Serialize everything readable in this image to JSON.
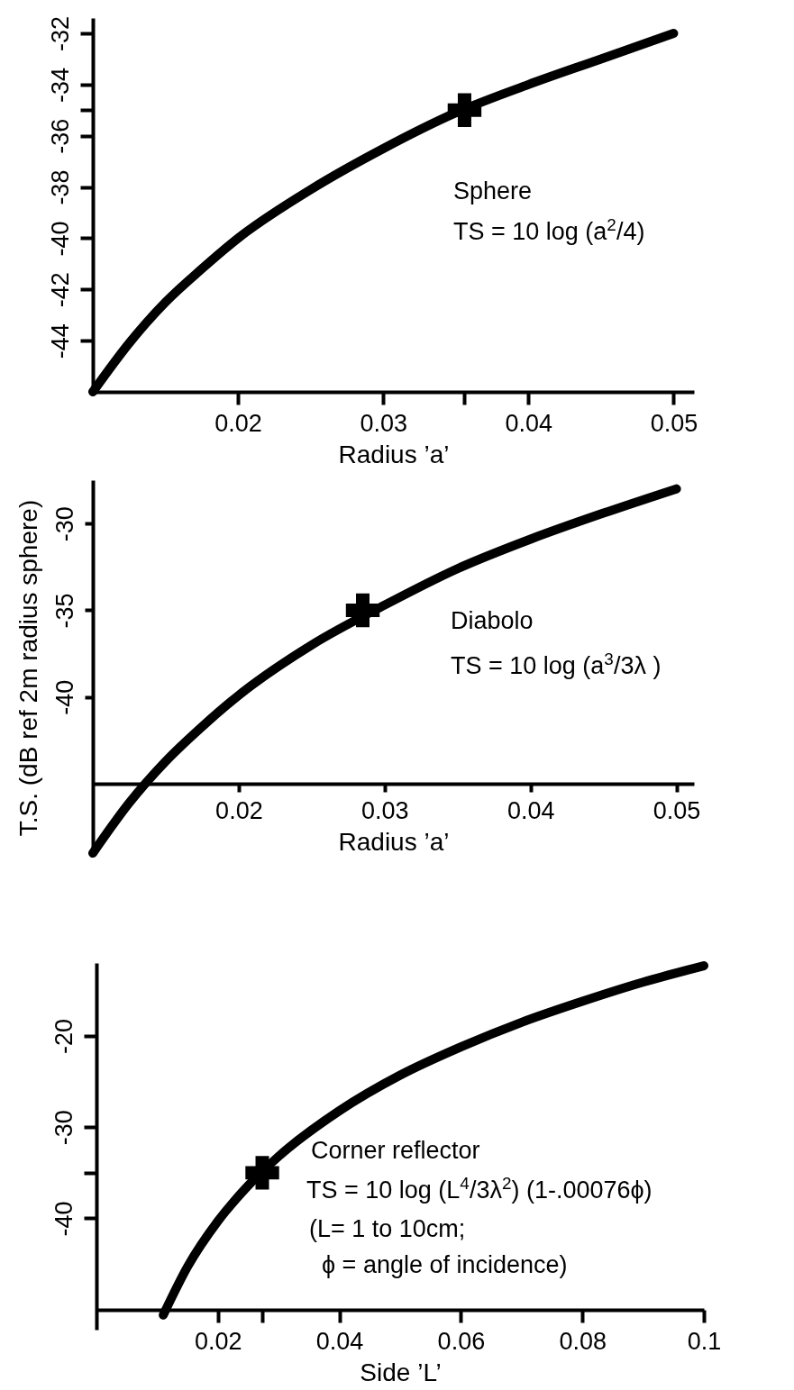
{
  "chart_data": [
    {
      "type": "line",
      "xlabel": "Radius ’a’",
      "xlim": [
        0.01,
        0.0514
      ],
      "ylim": [
        -46,
        -31.4
      ],
      "xticks": [
        0.02,
        0.03,
        {
          "value": 0.0356,
          "label": null
        },
        0.04,
        0.05
      ],
      "yticks": [
        -44,
        -42,
        -40,
        -38,
        -36,
        {
          "value": -35,
          "label": null
        },
        -34,
        -32
      ],
      "series": [
        {
          "color": "#000000",
          "x": [
            0.01,
            0.0125,
            0.015,
            0.0175,
            0.02,
            0.025,
            0.03,
            0.035,
            0.04,
            0.045,
            0.05
          ],
          "values": [
            -46.0,
            -44.1,
            -42.5,
            -41.2,
            -40.0,
            -38.1,
            -36.5,
            -35.1,
            -34.0,
            -33.0,
            -32.0
          ]
        },
        {
          "type": "scatter",
          "marker": "cross",
          "color": "#000000",
          "x": [
            0.0356
          ],
          "values": [
            -35
          ]
        }
      ],
      "annotations": [
        "Sphere",
        "TS = 10 log (a$^{2}$/4)"
      ]
    },
    {
      "type": "line",
      "xlabel": "Radius ’a’",
      "ylabel": "T.S. (dB ref 2m radius sphere)",
      "xlim": [
        0.01,
        0.0512
      ],
      "ylim": [
        -49.1,
        -27.5
      ],
      "xticks": [
        0.02,
        0.03,
        0.04,
        0.05
      ],
      "yticks": [
        -40,
        -35,
        -30
      ],
      "series": [
        {
          "color": "#000000",
          "x": [
            0.01,
            0.0125,
            0.015,
            0.0175,
            0.02,
            0.025,
            0.03,
            0.035,
            0.04,
            0.045,
            0.05
          ],
          "values": [
            -49.0,
            -46.1,
            -43.7,
            -41.7,
            -39.9,
            -37.0,
            -34.7,
            -32.6,
            -30.9,
            -29.4,
            -28.0
          ]
        },
        {
          "type": "scatter",
          "marker": "cross",
          "color": "#000000",
          "x": [
            0.0285
          ],
          "values": [
            -35
          ]
        }
      ],
      "annotations": [
        "Diabolo",
        "TS = 10 log (a$^{3}$/3λ )"
      ]
    },
    {
      "type": "line",
      "xlabel": "Side ’L’",
      "xlim": [
        0,
        0.1
      ],
      "ylim": [
        -52.2,
        -12
      ],
      "xticks": [
        0.02,
        {
          "value": 0.0273,
          "label": null
        },
        0.04,
        0.06,
        0.08,
        0.1
      ],
      "yticks": [
        -40,
        {
          "value": -35,
          "label": null
        },
        -30,
        -20
      ],
      "series": [
        {
          "color": "#000000",
          "x": [
            0.011,
            0.015,
            0.02,
            0.025,
            0.03,
            0.04,
            0.05,
            0.06,
            0.07,
            0.08,
            0.09,
            0.1
          ],
          "values": [
            -50.6,
            -45.3,
            -40.3,
            -36.4,
            -33.2,
            -28.2,
            -24.3,
            -21.2,
            -18.5,
            -16.2,
            -14.1,
            -12.3
          ]
        },
        {
          "type": "scatter",
          "marker": "cross",
          "color": "#000000",
          "x": [
            0.0273
          ],
          "values": [
            -35
          ]
        }
      ],
      "annotations": [
        "Corner reflector",
        "TS = 10 log (L$^{4}$/3λ$^{2}$) (1-.00076ϕ)",
        "(L= 1 to 10cm;",
        "ϕ = angle of incidence)"
      ]
    }
  ]
}
